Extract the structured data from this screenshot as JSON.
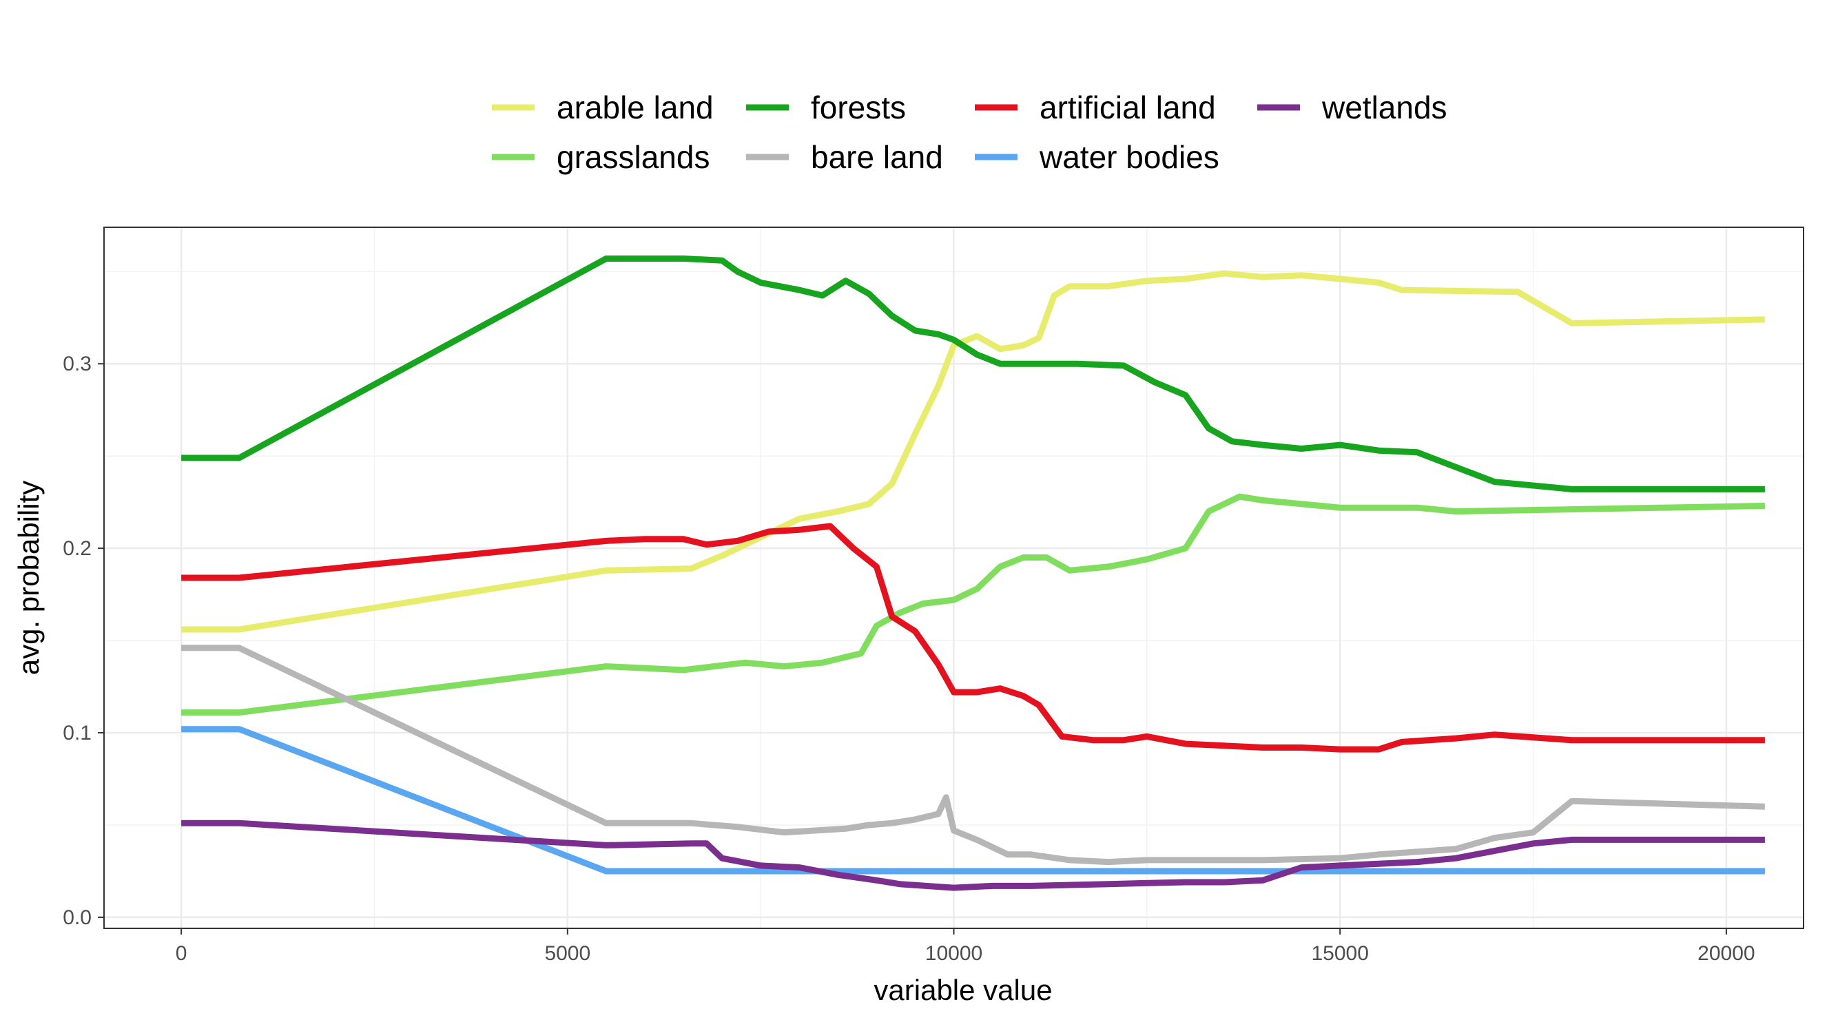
{
  "chart_data": {
    "type": "line",
    "xlabel": "variable value",
    "ylabel": "avg. probability",
    "xlim": [
      -1000,
      21000
    ],
    "ylim": [
      -0.006,
      0.374
    ],
    "x_ticks": [
      0,
      5000,
      10000,
      15000,
      20000
    ],
    "x_tick_labels": [
      "0",
      "5000",
      "10000",
      "15000",
      "20000"
    ],
    "y_ticks": [
      0.0,
      0.1,
      0.2,
      0.3
    ],
    "y_tick_labels": [
      "0.0",
      "0.1",
      "0.2",
      "0.3"
    ],
    "grid": true,
    "legend_position": "top",
    "series": [
      {
        "name": "arable land",
        "color": "#e8ec6c",
        "x": [
          0,
          750,
          5500,
          6600,
          7000,
          7500,
          8000,
          8500,
          8900,
          9200,
          9500,
          9800,
          10000,
          10300,
          10600,
          10900,
          11100,
          11300,
          11500,
          12000,
          12500,
          13000,
          13500,
          14000,
          14500,
          15000,
          15500,
          15800,
          17300,
          18000,
          20500
        ],
        "y": [
          0.156,
          0.156,
          0.188,
          0.189,
          0.196,
          0.206,
          0.216,
          0.22,
          0.224,
          0.235,
          0.262,
          0.288,
          0.31,
          0.315,
          0.308,
          0.31,
          0.314,
          0.337,
          0.342,
          0.342,
          0.345,
          0.346,
          0.349,
          0.347,
          0.348,
          0.346,
          0.344,
          0.34,
          0.339,
          0.322,
          0.324
        ]
      },
      {
        "name": "grasslands",
        "color": "#80dd5e",
        "x": [
          0,
          750,
          5500,
          6500,
          7300,
          7800,
          8300,
          8800,
          9000,
          9300,
          9600,
          10000,
          10300,
          10600,
          10900,
          11200,
          11500,
          12000,
          12500,
          13000,
          13300,
          13700,
          14000,
          14500,
          15000,
          16000,
          16500,
          20500
        ],
        "y": [
          0.111,
          0.111,
          0.136,
          0.134,
          0.138,
          0.136,
          0.138,
          0.143,
          0.158,
          0.165,
          0.17,
          0.172,
          0.178,
          0.19,
          0.195,
          0.195,
          0.188,
          0.19,
          0.194,
          0.2,
          0.22,
          0.228,
          0.226,
          0.224,
          0.222,
          0.222,
          0.22,
          0.223
        ]
      },
      {
        "name": "forests",
        "color": "#17a41e",
        "x": [
          0,
          750,
          5500,
          6500,
          7000,
          7200,
          7500,
          8000,
          8300,
          8600,
          8900,
          9200,
          9500,
          9800,
          10000,
          10300,
          10600,
          10900,
          11200,
          11600,
          12200,
          12600,
          13000,
          13300,
          13600,
          14000,
          14500,
          15000,
          15500,
          16000,
          16500,
          17000,
          18000,
          20500
        ],
        "y": [
          0.249,
          0.249,
          0.357,
          0.357,
          0.356,
          0.35,
          0.344,
          0.34,
          0.337,
          0.345,
          0.338,
          0.326,
          0.318,
          0.316,
          0.313,
          0.305,
          0.3,
          0.3,
          0.3,
          0.3,
          0.299,
          0.29,
          0.283,
          0.265,
          0.258,
          0.256,
          0.254,
          0.256,
          0.253,
          0.252,
          0.244,
          0.236,
          0.232,
          0.232
        ]
      },
      {
        "name": "bare land",
        "color": "#b6b6b6",
        "x": [
          0,
          750,
          5500,
          6600,
          7200,
          7800,
          8200,
          8600,
          8900,
          9200,
          9500,
          9800,
          9900,
          10000,
          10300,
          10700,
          11000,
          11500,
          12000,
          12500,
          13000,
          14000,
          15000,
          15500,
          16500,
          17000,
          17500,
          18000,
          20500
        ],
        "y": [
          0.146,
          0.146,
          0.051,
          0.051,
          0.049,
          0.046,
          0.047,
          0.048,
          0.05,
          0.051,
          0.053,
          0.056,
          0.065,
          0.047,
          0.042,
          0.034,
          0.034,
          0.031,
          0.03,
          0.031,
          0.031,
          0.031,
          0.032,
          0.034,
          0.037,
          0.043,
          0.046,
          0.063,
          0.06
        ]
      },
      {
        "name": "artificial land",
        "color": "#e4121f",
        "x": [
          0,
          750,
          5500,
          6000,
          6500,
          6800,
          7200,
          7600,
          8000,
          8400,
          8700,
          9000,
          9200,
          9500,
          9800,
          10000,
          10300,
          10600,
          10900,
          11100,
          11400,
          11800,
          12200,
          12500,
          13000,
          13500,
          14000,
          14500,
          15000,
          15500,
          15800,
          16500,
          17000,
          18000,
          20500
        ],
        "y": [
          0.184,
          0.184,
          0.204,
          0.205,
          0.205,
          0.202,
          0.204,
          0.209,
          0.21,
          0.212,
          0.2,
          0.19,
          0.163,
          0.155,
          0.137,
          0.122,
          0.122,
          0.124,
          0.12,
          0.115,
          0.098,
          0.096,
          0.096,
          0.098,
          0.094,
          0.093,
          0.092,
          0.092,
          0.091,
          0.091,
          0.095,
          0.097,
          0.099,
          0.096,
          0.096
        ]
      },
      {
        "name": "water bodies",
        "color": "#5aa6f0",
        "x": [
          0,
          750,
          5500,
          20500
        ],
        "y": [
          0.102,
          0.102,
          0.025,
          0.025
        ]
      },
      {
        "name": "wetlands",
        "color": "#7a2e8e",
        "x": [
          0,
          750,
          5500,
          6600,
          6800,
          7000,
          7500,
          8000,
          8500,
          9000,
          9300,
          10000,
          10500,
          11000,
          12000,
          13000,
          13500,
          14000,
          14500,
          15000,
          15500,
          16000,
          16500,
          17000,
          17500,
          18000,
          20500
        ],
        "y": [
          0.051,
          0.051,
          0.039,
          0.04,
          0.04,
          0.032,
          0.028,
          0.027,
          0.023,
          0.02,
          0.018,
          0.016,
          0.017,
          0.017,
          0.018,
          0.019,
          0.019,
          0.02,
          0.027,
          0.028,
          0.029,
          0.03,
          0.032,
          0.036,
          0.04,
          0.042,
          0.042
        ]
      }
    ]
  },
  "legend": {
    "items": [
      {
        "label": "arable land",
        "color": "#e8ec6c"
      },
      {
        "label": "grasslands",
        "color": "#80dd5e"
      },
      {
        "label": "forests",
        "color": "#17a41e"
      },
      {
        "label": "bare land",
        "color": "#b6b6b6"
      },
      {
        "label": "artificial land",
        "color": "#e4121f"
      },
      {
        "label": "water bodies",
        "color": "#5aa6f0"
      },
      {
        "label": "wetlands",
        "color": "#7a2e8e"
      }
    ]
  }
}
